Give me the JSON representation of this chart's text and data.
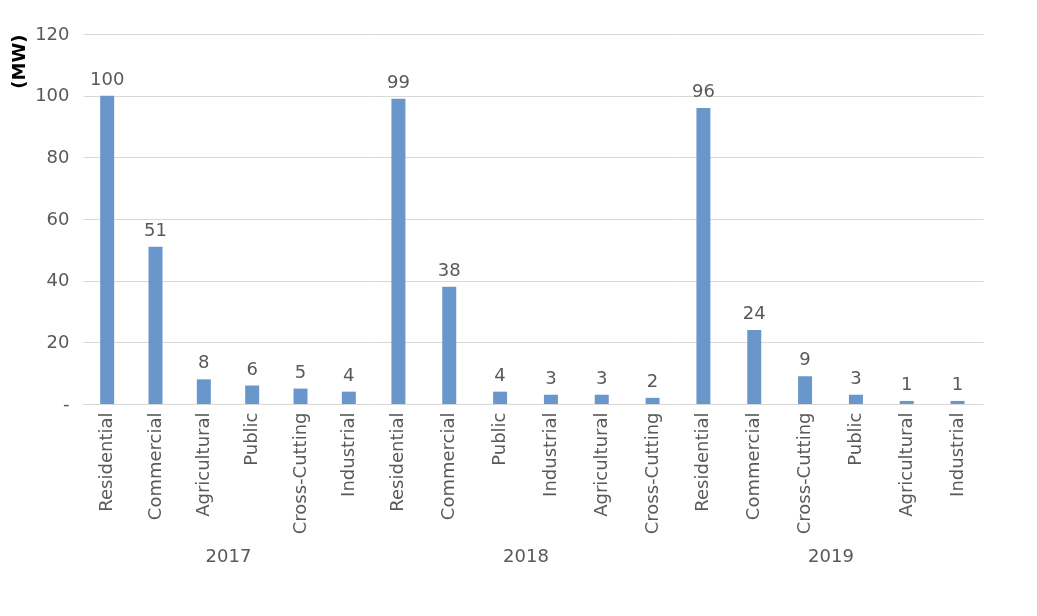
{
  "chart_data": [
    {
      "type": "bar",
      "ylabel": "(MW)",
      "xlabel": "2017",
      "categories": [
        "Residential",
        "Commercial",
        "Agricultural",
        "Public",
        "Cross-Cutting",
        "Industrial"
      ],
      "values": [
        100,
        51,
        8,
        6,
        5,
        4
      ],
      "color": "#6a97cb",
      "data_labels": true,
      "ylim": [
        0,
        120
      ],
      "yticks": [
        {
          "value": 0,
          "label": "-"
        },
        20,
        40,
        60,
        80,
        100,
        120
      ],
      "grid": "y"
    },
    {
      "type": "bar",
      "xlabel": "2018",
      "categories": [
        "Residential",
        "Commercial",
        "Public",
        "Industrial",
        "Agricultural",
        "Cross-Cutting"
      ],
      "values": [
        99,
        38,
        4,
        3,
        3,
        2
      ],
      "color": "#6a97cb",
      "data_labels": true,
      "ylim": [
        0,
        120
      ],
      "yticks": [
        0,
        20,
        40,
        60,
        80,
        100,
        120
      ],
      "grid": "y",
      "tick_labels": "x"
    },
    {
      "type": "bar",
      "xlabel": "2019",
      "categories": [
        "Residential",
        "Commercial",
        "Cross-Cutting",
        "Public",
        "Agricultural",
        "Industrial"
      ],
      "values": [
        96,
        24,
        9,
        3,
        1,
        1
      ],
      "color": "#6a97cb",
      "data_labels": true,
      "ylim": [
        0,
        120
      ],
      "yticks": [
        0,
        20,
        40,
        60,
        80,
        100,
        120
      ],
      "grid": "y",
      "tick_labels": "x"
    }
  ]
}
